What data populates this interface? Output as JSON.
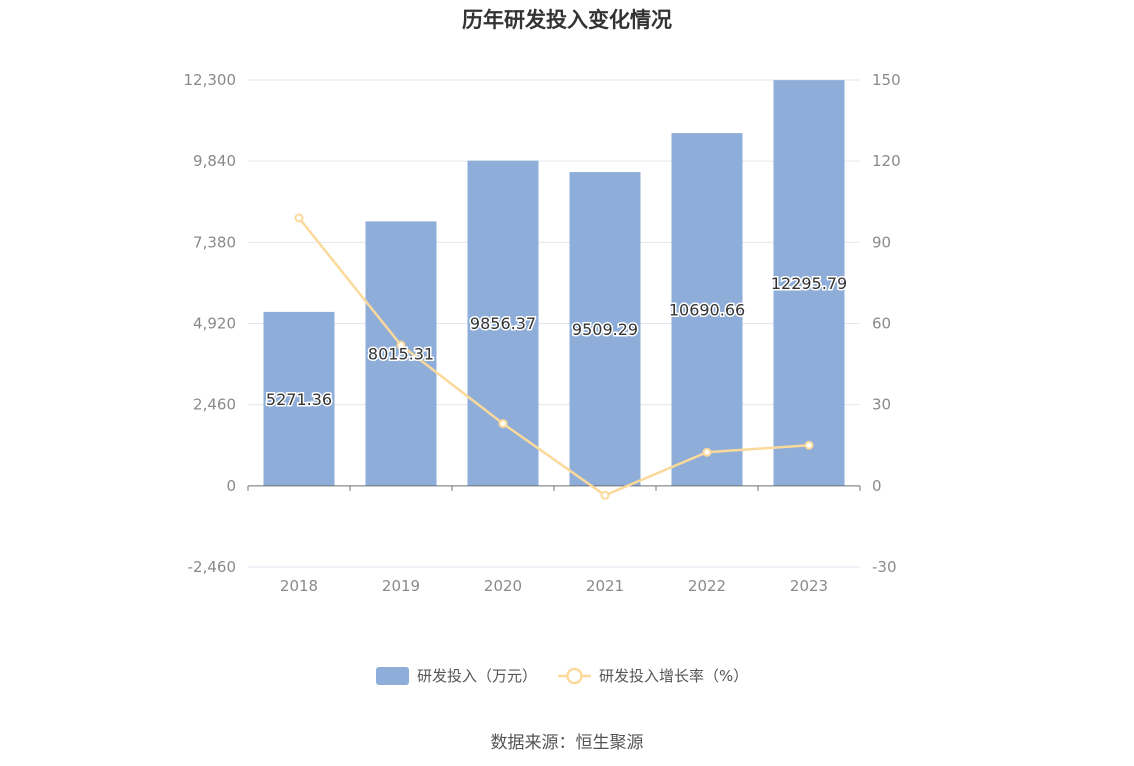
{
  "chart_data": {
    "type": "bar",
    "title": "历年研发投入变化情况",
    "categories": [
      "2018",
      "2019",
      "2020",
      "2021",
      "2022",
      "2023"
    ],
    "series": [
      {
        "name": "研发投入（万元）",
        "type": "bar",
        "axis": "left",
        "values": [
          5271.36,
          8015.31,
          9856.37,
          9509.29,
          10690.66,
          12295.79
        ],
        "labels": [
          "5271.36",
          "8015.31",
          "9856.37",
          "9509.29",
          "10690.66",
          "12295.79"
        ]
      },
      {
        "name": "研发投入增长率（%）",
        "type": "line",
        "axis": "right",
        "values": [
          99,
          52,
          23,
          -3.5,
          12.4,
          15
        ]
      }
    ],
    "y_left": {
      "ylim": [
        -2460,
        12300
      ],
      "ticks": [
        -2460,
        0,
        2460,
        4920,
        7380,
        9840,
        12300
      ],
      "tick_labels": [
        "-2,460",
        "0",
        "2,460",
        "4,920",
        "7,380",
        "9,840",
        "12,300"
      ]
    },
    "y_right": {
      "ylim": [
        -30,
        150
      ],
      "ticks": [
        -30,
        0,
        30,
        60,
        90,
        120,
        150
      ],
      "tick_labels": [
        "-30",
        "0",
        "30",
        "60",
        "90",
        "120",
        "150"
      ]
    },
    "grid": true,
    "legend": "bottom-center",
    "colors": {
      "bar": "#8eadd9",
      "line": "#fbd99b",
      "grid": "#e3e6f0",
      "axis": "#6e7079"
    }
  },
  "source": "数据来源：恒生聚源"
}
